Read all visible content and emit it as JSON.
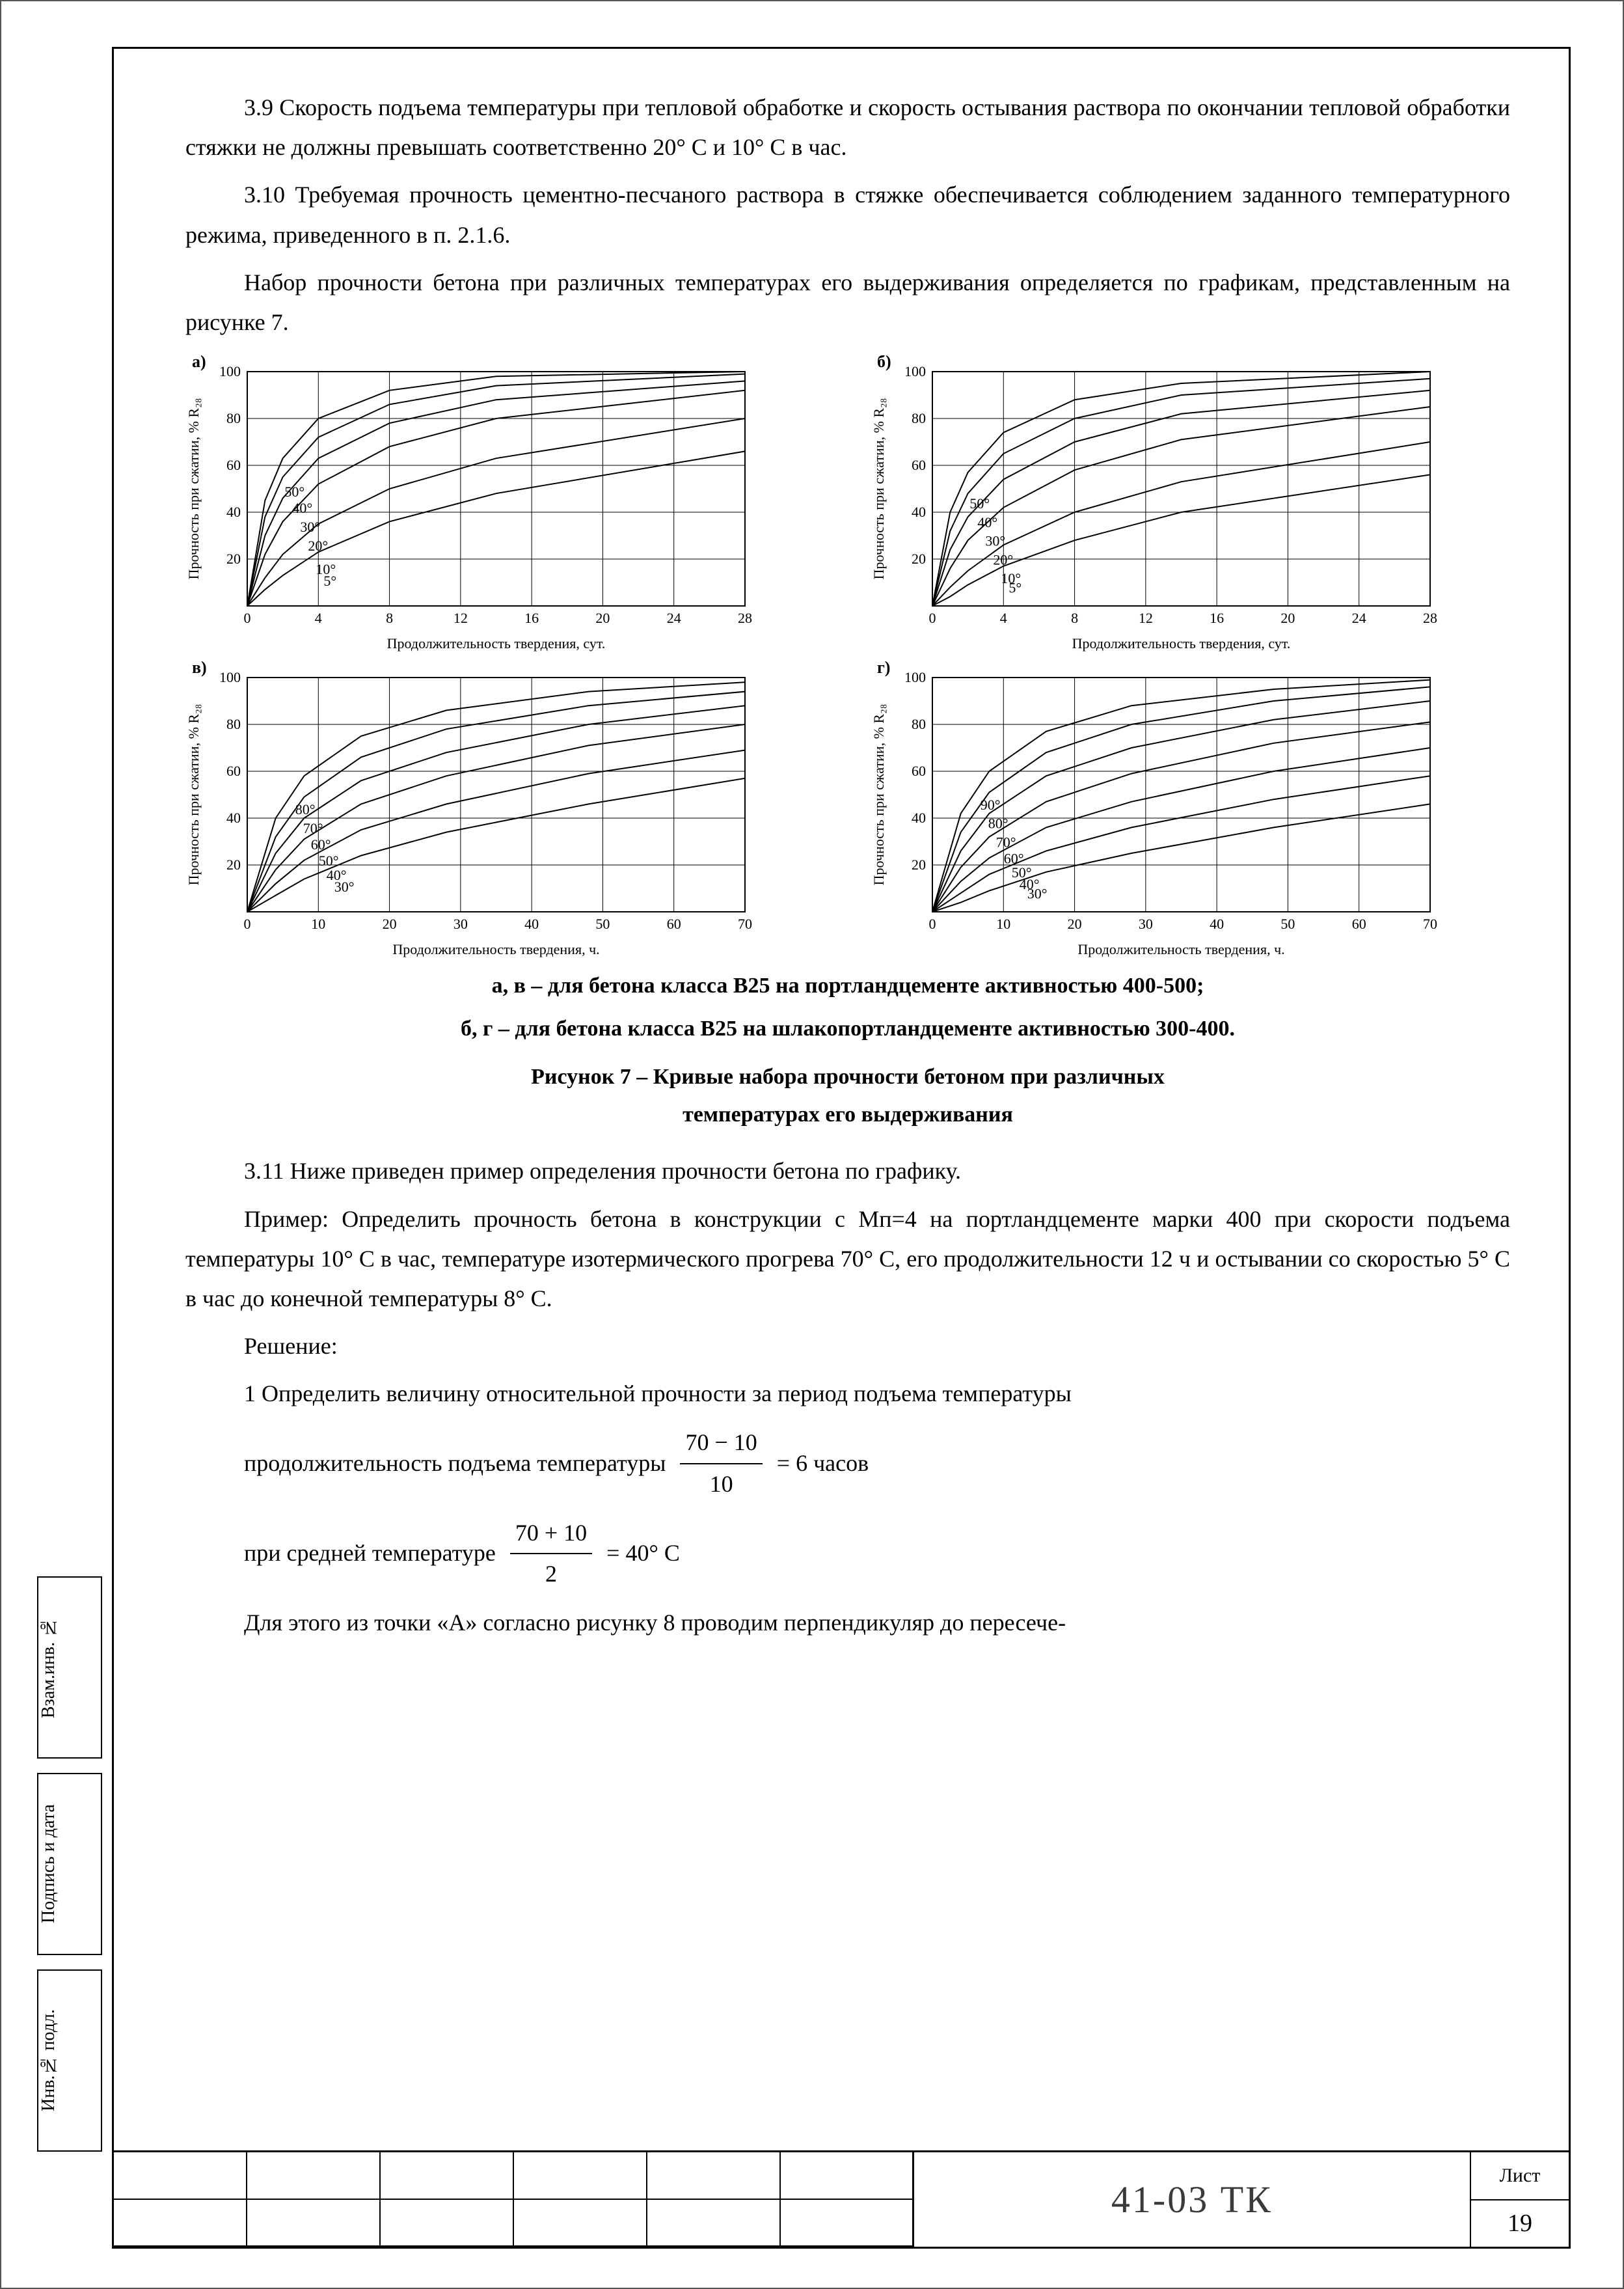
{
  "paragraphs": {
    "p39": "3.9 Скорость подъема температуры при тепловой обработке и скорость остывания раствора по окончании тепловой обработки стяжки не должны превышать соответственно 20° С и 10° С в час.",
    "p310": "3.10 Требуемая прочность цементно-песчаного раствора в стяжке обеспечивается соблюдением заданного температурного режима, приведенного в п. 2.1.6.",
    "p310b": "Набор прочности бетона при различных температурах его выдерживания определяется по графикам, представленным на рисунке 7.",
    "caption_av": "а, в – для бетона класса В25 на портландцементе активностью 400-500;",
    "caption_bg": "б, г – для бетона класса В25 на шлакопортландцементе активностью 300-400.",
    "fig_title_l1": "Рисунок 7 – Кривые набора прочности бетоном при различных",
    "fig_title_l2": "температурах его выдерживания",
    "p311": "3.11 Ниже приведен пример определения прочности бетона по графику.",
    "example": "Пример: Определить прочность бетона в конструкции с Мп=4 на портландцементе марки 400 при скорости подъема температуры 10° С в час, температуре изотермического прогрева 70° С, его продолжительности 12 ч и остывании со скоростью 5° С в час до конечной температуры 8° С.",
    "solution": "Решение:",
    "step1": "1 Определить величину относительной прочности за период подъема температуры",
    "f1_pre": "продолжительность подъема температуры",
    "f1_num": "70 − 10",
    "f1_den": "10",
    "f1_post": "= 6  часов",
    "f2_pre": "при средней температуре",
    "f2_num": "70 + 10",
    "f2_den": "2",
    "f2_post": "= 40° С",
    "p_tail": "Для этого из точки «А» согласно рисунку 8 проводим перпендикуляр до пересече-"
  },
  "charts": {
    "common": {
      "grid_color": "#000000",
      "line_color": "#000000",
      "line_width": 2,
      "bg": "#ffffff",
      "ylabel": "Прочность при сжатии, % R₂₈",
      "label_fontsize": 22,
      "tick_fontsize": 22,
      "series_label_fontsize": 22
    },
    "a": {
      "panel_label": "а)",
      "xlabel": "Продолжительность твердения, сут.",
      "xlim": [
        0,
        28
      ],
      "xtick_step": 4,
      "ylim": [
        0,
        100
      ],
      "ytick_step": 20,
      "ytick_start": 20,
      "series": [
        {
          "label": "50°",
          "pts": [
            [
              0,
              0
            ],
            [
              1,
              45
            ],
            [
              2,
              63
            ],
            [
              4,
              80
            ],
            [
              8,
              92
            ],
            [
              14,
              98
            ],
            [
              28,
              100
            ]
          ]
        },
        {
          "label": "40°",
          "pts": [
            [
              0,
              0
            ],
            [
              1,
              38
            ],
            [
              2,
              55
            ],
            [
              4,
              72
            ],
            [
              8,
              86
            ],
            [
              14,
              94
            ],
            [
              28,
              99
            ]
          ]
        },
        {
          "label": "30°",
          "pts": [
            [
              0,
              0
            ],
            [
              1,
              30
            ],
            [
              2,
              46
            ],
            [
              4,
              63
            ],
            [
              8,
              78
            ],
            [
              14,
              88
            ],
            [
              28,
              96
            ]
          ]
        },
        {
          "label": "20°",
          "pts": [
            [
              0,
              0
            ],
            [
              1,
              22
            ],
            [
              2,
              36
            ],
            [
              4,
              52
            ],
            [
              8,
              68
            ],
            [
              14,
              80
            ],
            [
              28,
              92
            ]
          ]
        },
        {
          "label": "10°",
          "pts": [
            [
              0,
              0
            ],
            [
              1,
              12
            ],
            [
              2,
              22
            ],
            [
              4,
              35
            ],
            [
              8,
              50
            ],
            [
              14,
              63
            ],
            [
              28,
              80
            ]
          ]
        },
        {
          "label": "5°",
          "pts": [
            [
              0,
              0
            ],
            [
              1,
              7
            ],
            [
              2,
              13
            ],
            [
              4,
              23
            ],
            [
              8,
              36
            ],
            [
              14,
              48
            ],
            [
              28,
              66
            ]
          ]
        }
      ]
    },
    "b": {
      "panel_label": "б)",
      "xlabel": "Продолжительность твердения, сут.",
      "xlim": [
        0,
        28
      ],
      "xtick_step": 4,
      "ylim": [
        0,
        100
      ],
      "ytick_step": 20,
      "ytick_start": 20,
      "series": [
        {
          "label": "50°",
          "pts": [
            [
              0,
              0
            ],
            [
              1,
              40
            ],
            [
              2,
              57
            ],
            [
              4,
              74
            ],
            [
              8,
              88
            ],
            [
              14,
              95
            ],
            [
              28,
              100
            ]
          ]
        },
        {
          "label": "40°",
          "pts": [
            [
              0,
              0
            ],
            [
              1,
              32
            ],
            [
              2,
              48
            ],
            [
              4,
              65
            ],
            [
              8,
              80
            ],
            [
              14,
              90
            ],
            [
              28,
              97
            ]
          ]
        },
        {
          "label": "30°",
          "pts": [
            [
              0,
              0
            ],
            [
              1,
              24
            ],
            [
              2,
              38
            ],
            [
              4,
              54
            ],
            [
              8,
              70
            ],
            [
              14,
              82
            ],
            [
              28,
              92
            ]
          ]
        },
        {
          "label": "20°",
          "pts": [
            [
              0,
              0
            ],
            [
              1,
              16
            ],
            [
              2,
              28
            ],
            [
              4,
              42
            ],
            [
              8,
              58
            ],
            [
              14,
              71
            ],
            [
              28,
              85
            ]
          ]
        },
        {
          "label": "10°",
          "pts": [
            [
              0,
              0
            ],
            [
              1,
              8
            ],
            [
              2,
              15
            ],
            [
              4,
              26
            ],
            [
              8,
              40
            ],
            [
              14,
              53
            ],
            [
              28,
              70
            ]
          ]
        },
        {
          "label": "5°",
          "pts": [
            [
              0,
              0
            ],
            [
              1,
              4
            ],
            [
              2,
              9
            ],
            [
              4,
              17
            ],
            [
              8,
              28
            ],
            [
              14,
              40
            ],
            [
              28,
              56
            ]
          ]
        }
      ]
    },
    "v": {
      "panel_label": "в)",
      "xlabel": "Продолжительность твердения, ч.",
      "xlim": [
        0,
        70
      ],
      "xtick_step": 10,
      "ylim": [
        0,
        100
      ],
      "ytick_step": 20,
      "ytick_start": 20,
      "series": [
        {
          "label": "80°",
          "pts": [
            [
              0,
              0
            ],
            [
              4,
              40
            ],
            [
              8,
              58
            ],
            [
              16,
              75
            ],
            [
              28,
              86
            ],
            [
              48,
              94
            ],
            [
              70,
              98
            ]
          ]
        },
        {
          "label": "70°",
          "pts": [
            [
              0,
              0
            ],
            [
              4,
              32
            ],
            [
              8,
              49
            ],
            [
              16,
              66
            ],
            [
              28,
              78
            ],
            [
              48,
              88
            ],
            [
              70,
              94
            ]
          ]
        },
        {
          "label": "60°",
          "pts": [
            [
              0,
              0
            ],
            [
              4,
              25
            ],
            [
              8,
              40
            ],
            [
              16,
              56
            ],
            [
              28,
              68
            ],
            [
              48,
              80
            ],
            [
              70,
              88
            ]
          ]
        },
        {
          "label": "50°",
          "pts": [
            [
              0,
              0
            ],
            [
              4,
              18
            ],
            [
              8,
              31
            ],
            [
              16,
              46
            ],
            [
              28,
              58
            ],
            [
              48,
              71
            ],
            [
              70,
              80
            ]
          ]
        },
        {
          "label": "40°",
          "pts": [
            [
              0,
              0
            ],
            [
              4,
              12
            ],
            [
              8,
              22
            ],
            [
              16,
              35
            ],
            [
              28,
              46
            ],
            [
              48,
              59
            ],
            [
              70,
              69
            ]
          ]
        },
        {
          "label": "30°",
          "pts": [
            [
              0,
              0
            ],
            [
              4,
              7
            ],
            [
              8,
              14
            ],
            [
              16,
              24
            ],
            [
              28,
              34
            ],
            [
              48,
              46
            ],
            [
              70,
              57
            ]
          ]
        }
      ]
    },
    "g": {
      "panel_label": "г)",
      "xlabel": "Продолжительность твердения, ч.",
      "xlim": [
        0,
        70
      ],
      "xtick_step": 10,
      "ylim": [
        0,
        100
      ],
      "ytick_step": 20,
      "ytick_start": 20,
      "series": [
        {
          "label": "90°",
          "pts": [
            [
              0,
              0
            ],
            [
              4,
              42
            ],
            [
              8,
              60
            ],
            [
              16,
              77
            ],
            [
              28,
              88
            ],
            [
              48,
              95
            ],
            [
              70,
              99
            ]
          ]
        },
        {
          "label": "80°",
          "pts": [
            [
              0,
              0
            ],
            [
              4,
              34
            ],
            [
              8,
              51
            ],
            [
              16,
              68
            ],
            [
              28,
              80
            ],
            [
              48,
              90
            ],
            [
              70,
              96
            ]
          ]
        },
        {
          "label": "70°",
          "pts": [
            [
              0,
              0
            ],
            [
              4,
              26
            ],
            [
              8,
              42
            ],
            [
              16,
              58
            ],
            [
              28,
              70
            ],
            [
              48,
              82
            ],
            [
              70,
              90
            ]
          ]
        },
        {
          "label": "60°",
          "pts": [
            [
              0,
              0
            ],
            [
              4,
              19
            ],
            [
              8,
              32
            ],
            [
              16,
              47
            ],
            [
              28,
              59
            ],
            [
              48,
              72
            ],
            [
              70,
              81
            ]
          ]
        },
        {
          "label": "50°",
          "pts": [
            [
              0,
              0
            ],
            [
              4,
              13
            ],
            [
              8,
              23
            ],
            [
              16,
              36
            ],
            [
              28,
              47
            ],
            [
              48,
              60
            ],
            [
              70,
              70
            ]
          ]
        },
        {
          "label": "40°",
          "pts": [
            [
              0,
              0
            ],
            [
              4,
              8
            ],
            [
              8,
              16
            ],
            [
              16,
              26
            ],
            [
              28,
              36
            ],
            [
              48,
              48
            ],
            [
              70,
              58
            ]
          ]
        },
        {
          "label": "30°",
          "pts": [
            [
              0,
              0
            ],
            [
              4,
              4
            ],
            [
              8,
              9
            ],
            [
              16,
              17
            ],
            [
              28,
              25
            ],
            [
              48,
              36
            ],
            [
              70,
              46
            ]
          ]
        }
      ]
    }
  },
  "sidebar": {
    "cells": [
      "Взам.инв. №",
      "Подпись и дата",
      "Инв.№ подл."
    ]
  },
  "titleblock": {
    "docnum": "41-03 ТК",
    "sheet_label": "Лист",
    "sheet_num": "19"
  }
}
